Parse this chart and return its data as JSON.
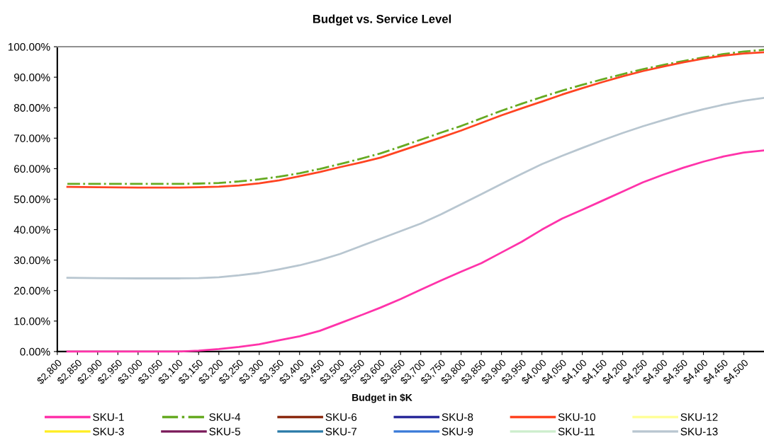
{
  "chart_data": {
    "type": "line",
    "title": "Budget vs. Service Level",
    "xlabel": "Budget in $K",
    "x": [
      2825,
      2900,
      3000,
      3100,
      3150,
      3200,
      3250,
      3300,
      3350,
      3400,
      3450,
      3500,
      3550,
      3600,
      3650,
      3700,
      3750,
      3800,
      3850,
      3900,
      3950,
      4000,
      4050,
      4100,
      4150,
      4200,
      4250,
      4300,
      4350,
      4400,
      4450,
      4500,
      4550
    ],
    "xlim": [
      2800,
      4550
    ],
    "xticks": [
      {
        "value": 2800,
        "label": "$2,800"
      },
      {
        "value": 2850,
        "label": "$2,850"
      },
      {
        "value": 2900,
        "label": "$2,900"
      },
      {
        "value": 2950,
        "label": "$2,950"
      },
      {
        "value": 3000,
        "label": "$3,000"
      },
      {
        "value": 3050,
        "label": "$3,050"
      },
      {
        "value": 3100,
        "label": "$3,100"
      },
      {
        "value": 3150,
        "label": "$3,150"
      },
      {
        "value": 3200,
        "label": "$3,200"
      },
      {
        "value": 3250,
        "label": "$3,250"
      },
      {
        "value": 3300,
        "label": "$3,300"
      },
      {
        "value": 3350,
        "label": "$3,350"
      },
      {
        "value": 3400,
        "label": "$3,400"
      },
      {
        "value": 3450,
        "label": "$3,450"
      },
      {
        "value": 3500,
        "label": "$3,500"
      },
      {
        "value": 3550,
        "label": "$3,550"
      },
      {
        "value": 3600,
        "label": "$3,600"
      },
      {
        "value": 3650,
        "label": "$3,650"
      },
      {
        "value": 3700,
        "label": "$3,700"
      },
      {
        "value": 3750,
        "label": "$3,750"
      },
      {
        "value": 3800,
        "label": "$3,800"
      },
      {
        "value": 3850,
        "label": "$3,850"
      },
      {
        "value": 3900,
        "label": "$3,900"
      },
      {
        "value": 3950,
        "label": "$3,950"
      },
      {
        "value": 4000,
        "label": "$4,000"
      },
      {
        "value": 4050,
        "label": "$4,050"
      },
      {
        "value": 4100,
        "label": "$4,100"
      },
      {
        "value": 4150,
        "label": "$4,150"
      },
      {
        "value": 4200,
        "label": "$4,200"
      },
      {
        "value": 4250,
        "label": "$4,250"
      },
      {
        "value": 4300,
        "label": "$4,300"
      },
      {
        "value": 4350,
        "label": "$4,350"
      },
      {
        "value": 4400,
        "label": "$4,400"
      },
      {
        "value": 4450,
        "label": "$4,450"
      },
      {
        "value": 4500,
        "label": "$4,500"
      }
    ],
    "ylim": [
      0,
      100
    ],
    "yticks": [
      {
        "value": 0,
        "label": "0.00%"
      },
      {
        "value": 10,
        "label": "10.00%"
      },
      {
        "value": 20,
        "label": "20.00%"
      },
      {
        "value": 30,
        "label": "30.00%"
      },
      {
        "value": 40,
        "label": "40.00%"
      },
      {
        "value": 50,
        "label": "50.00%"
      },
      {
        "value": 60,
        "label": "60.00%"
      },
      {
        "value": 70,
        "label": "70.00%"
      },
      {
        "value": 80,
        "label": "80.00%"
      },
      {
        "value": 90,
        "label": "90.00%"
      },
      {
        "value": 100,
        "label": "100.00%"
      }
    ],
    "grid": false,
    "legend": "bottom",
    "marker": "none",
    "series": [
      {
        "name": "SKU-1",
        "color": "#ff33aa",
        "values": [
          0,
          0,
          0,
          0,
          0.3,
          0.8,
          1.5,
          2.4,
          3.7,
          5,
          6.8,
          9.3,
          11.8,
          14.4,
          17.2,
          20.3,
          23.3,
          26.2,
          29,
          32.5,
          36,
          40,
          43.6,
          46.5,
          49.5,
          52.5,
          55.5,
          58,
          60.3,
          62.3,
          64,
          65.3,
          66
        ]
      },
      {
        "name": "SKU-3",
        "color": "#ffee22",
        "values": [
          null,
          null,
          null,
          null,
          null,
          null,
          null,
          null,
          null,
          null,
          null,
          null,
          null,
          null,
          null,
          null,
          null,
          null,
          null,
          null,
          null,
          null,
          null,
          null,
          null,
          null,
          null,
          null,
          null,
          null,
          null,
          null,
          null
        ]
      },
      {
        "name": "SKU-4",
        "color": "#66aa22",
        "line_style": "dashdot",
        "values": [
          55,
          55,
          55,
          55,
          55.1,
          55.3,
          55.8,
          56.5,
          57.4,
          58.5,
          59.9,
          61.5,
          63.2,
          65,
          67.2,
          69.5,
          71.8,
          74,
          76.5,
          79,
          81.3,
          83.5,
          85.6,
          87.5,
          89.3,
          91,
          92.6,
          94,
          95.3,
          96.5,
          97.6,
          98.4,
          99
        ]
      },
      {
        "name": "SKU-5",
        "color": "#7a1a5a",
        "values": [
          null,
          null,
          null,
          null,
          null,
          null,
          null,
          null,
          null,
          null,
          null,
          null,
          null,
          null,
          null,
          null,
          null,
          null,
          null,
          null,
          null,
          null,
          null,
          null,
          null,
          null,
          null,
          null,
          null,
          null,
          null,
          null,
          null
        ]
      },
      {
        "name": "SKU-6",
        "color": "#8b2a10",
        "values": [
          null,
          null,
          null,
          null,
          null,
          null,
          null,
          null,
          null,
          null,
          null,
          null,
          null,
          null,
          null,
          null,
          null,
          null,
          null,
          null,
          null,
          null,
          null,
          null,
          null,
          null,
          null,
          null,
          null,
          null,
          null,
          null,
          null
        ]
      },
      {
        "name": "SKU-7",
        "color": "#2a7aa8",
        "values": [
          null,
          null,
          null,
          null,
          null,
          null,
          null,
          null,
          null,
          null,
          null,
          null,
          null,
          null,
          null,
          null,
          null,
          null,
          null,
          null,
          null,
          null,
          null,
          null,
          null,
          null,
          null,
          null,
          null,
          null,
          null,
          null,
          null
        ]
      },
      {
        "name": "SKU-8",
        "color": "#2a2a9a",
        "values": [
          null,
          null,
          null,
          null,
          null,
          null,
          null,
          null,
          null,
          null,
          null,
          null,
          null,
          null,
          null,
          null,
          null,
          null,
          null,
          null,
          null,
          null,
          null,
          null,
          null,
          null,
          null,
          null,
          null,
          null,
          null,
          null,
          null
        ]
      },
      {
        "name": "SKU-9",
        "color": "#3a7ad8",
        "values": [
          null,
          null,
          null,
          null,
          null,
          null,
          null,
          null,
          null,
          null,
          null,
          null,
          null,
          null,
          null,
          null,
          null,
          null,
          null,
          null,
          null,
          null,
          null,
          null,
          null,
          null,
          null,
          null,
          null,
          null,
          null,
          null,
          null
        ]
      },
      {
        "name": "SKU-10",
        "color": "#ff4422",
        "values": [
          54,
          53.9,
          53.8,
          53.8,
          53.9,
          54.1,
          54.5,
          55.2,
          56.2,
          57.5,
          58.9,
          60.5,
          62,
          63.6,
          65.8,
          68,
          70.2,
          72.5,
          75,
          77.5,
          79.8,
          82,
          84.3,
          86.4,
          88.4,
          90.3,
          92,
          93.5,
          94.9,
          96.1,
          97.1,
          97.8,
          98.2
        ]
      },
      {
        "name": "SKU-11",
        "color": "#cceecc",
        "values": [
          null,
          null,
          null,
          null,
          null,
          null,
          null,
          null,
          null,
          null,
          null,
          null,
          null,
          null,
          null,
          null,
          null,
          null,
          null,
          null,
          null,
          null,
          null,
          null,
          null,
          null,
          null,
          null,
          null,
          null,
          null,
          null,
          null
        ]
      },
      {
        "name": "SKU-12",
        "color": "#ffff99",
        "values": [
          null,
          null,
          null,
          null,
          null,
          null,
          null,
          null,
          null,
          null,
          null,
          null,
          null,
          null,
          null,
          null,
          null,
          null,
          null,
          null,
          null,
          null,
          null,
          null,
          null,
          null,
          null,
          null,
          null,
          null,
          null,
          null,
          null
        ]
      },
      {
        "name": "SKU-13",
        "color": "#b8c6d0",
        "values": [
          24.2,
          24.1,
          24,
          24,
          24.1,
          24.4,
          25,
          25.8,
          27,
          28.3,
          30,
          32,
          34.5,
          37,
          39.5,
          42,
          45,
          48.3,
          51.6,
          55,
          58.3,
          61.5,
          64.2,
          66.8,
          69.3,
          71.7,
          73.9,
          75.9,
          77.8,
          79.5,
          81,
          82.3,
          83.2
        ]
      }
    ]
  }
}
